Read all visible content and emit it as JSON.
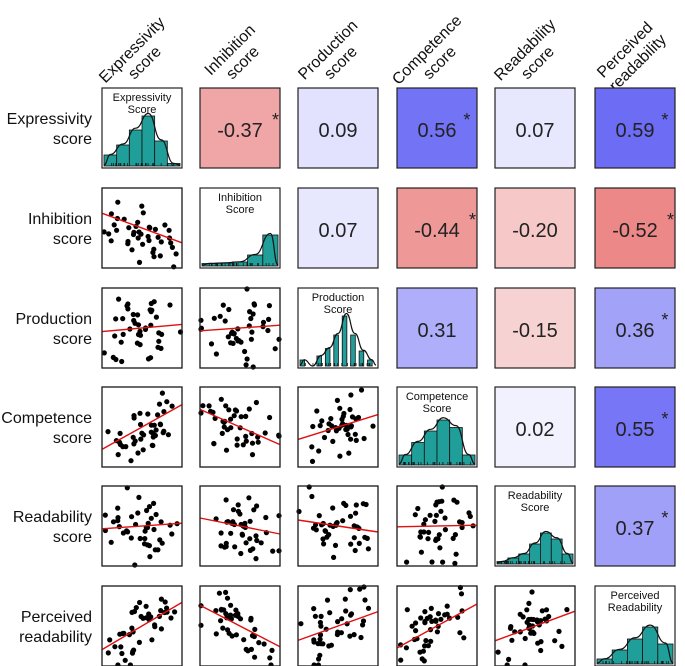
{
  "chart_data": {
    "type": "scatter-matrix",
    "variables": [
      "Expressivity score",
      "Inhibition score",
      "Production score",
      "Competence score",
      "Readability score",
      "Perceived readability"
    ],
    "column_labels": [
      [
        "Expressivity",
        "score"
      ],
      [
        "Inhibition",
        "score"
      ],
      [
        "Production",
        "score"
      ],
      [
        "Competence",
        "score"
      ],
      [
        "Readability",
        "score"
      ],
      [
        "Perceived",
        "readability"
      ]
    ],
    "row_labels": [
      [
        "Expressivity",
        "score"
      ],
      [
        "Inhibition",
        "score"
      ],
      [
        "Production",
        "score"
      ],
      [
        "Competence",
        "score"
      ],
      [
        "Readability",
        "score"
      ],
      [
        "Perceived",
        "readability"
      ]
    ],
    "diagonal_titles": [
      [
        "Expressivity",
        "Score"
      ],
      [
        "Inhibition",
        "Score"
      ],
      [
        "Production",
        "Score"
      ],
      [
        "Competence",
        "Score"
      ],
      [
        "Readability",
        "Score"
      ],
      [
        "Perceived",
        "Readability"
      ]
    ],
    "correlations": [
      {
        "row": 0,
        "col": 1,
        "value": "-0.37",
        "r": -0.37,
        "significant": true
      },
      {
        "row": 0,
        "col": 2,
        "value": "0.09",
        "r": 0.09,
        "significant": false
      },
      {
        "row": 0,
        "col": 3,
        "value": "0.56",
        "r": 0.56,
        "significant": true
      },
      {
        "row": 0,
        "col": 4,
        "value": "0.07",
        "r": 0.07,
        "significant": false
      },
      {
        "row": 0,
        "col": 5,
        "value": "0.59",
        "r": 0.59,
        "significant": true
      },
      {
        "row": 1,
        "col": 2,
        "value": "0.07",
        "r": 0.07,
        "significant": false
      },
      {
        "row": 1,
        "col": 3,
        "value": "-0.44",
        "r": -0.44,
        "significant": true
      },
      {
        "row": 1,
        "col": 4,
        "value": "-0.20",
        "r": -0.2,
        "significant": false
      },
      {
        "row": 1,
        "col": 5,
        "value": "-0.52",
        "r": -0.52,
        "significant": true
      },
      {
        "row": 2,
        "col": 3,
        "value": "0.31",
        "r": 0.31,
        "significant": false
      },
      {
        "row": 2,
        "col": 4,
        "value": "-0.15",
        "r": -0.15,
        "significant": false
      },
      {
        "row": 2,
        "col": 5,
        "value": "0.36",
        "r": 0.36,
        "significant": true
      },
      {
        "row": 3,
        "col": 4,
        "value": "0.02",
        "r": 0.02,
        "significant": false
      },
      {
        "row": 3,
        "col": 5,
        "value": "0.55",
        "r": 0.55,
        "significant": true
      },
      {
        "row": 4,
        "col": 5,
        "value": "0.37",
        "r": 0.37,
        "significant": true
      }
    ],
    "significance_marker": "*",
    "histograms": [
      [
        0.22,
        0.42,
        0.72,
        1.0,
        0.5,
        0.05
      ],
      [
        0.05,
        0.06,
        0.08,
        0.22,
        0.62
      ],
      [
        0.12,
        0.0,
        0.2,
        0.35,
        0.62,
        1.0,
        0.62,
        0.3,
        0.12
      ],
      [
        0.2,
        0.45,
        0.68,
        0.9,
        0.75,
        0.2
      ],
      [
        0.05,
        0.12,
        0.2,
        0.4,
        0.62,
        0.5,
        0.2
      ],
      [
        0.1,
        0.28,
        0.5,
        0.74,
        0.4
      ]
    ],
    "colors": {
      "positive_strong": "#6a6af5",
      "negative_strong": "#e98080",
      "neutral": "#f7f7ff",
      "histogram_fill": "#1f9e9a",
      "regression_line": "#e01010",
      "point": "#000000"
    },
    "grid": false
  }
}
